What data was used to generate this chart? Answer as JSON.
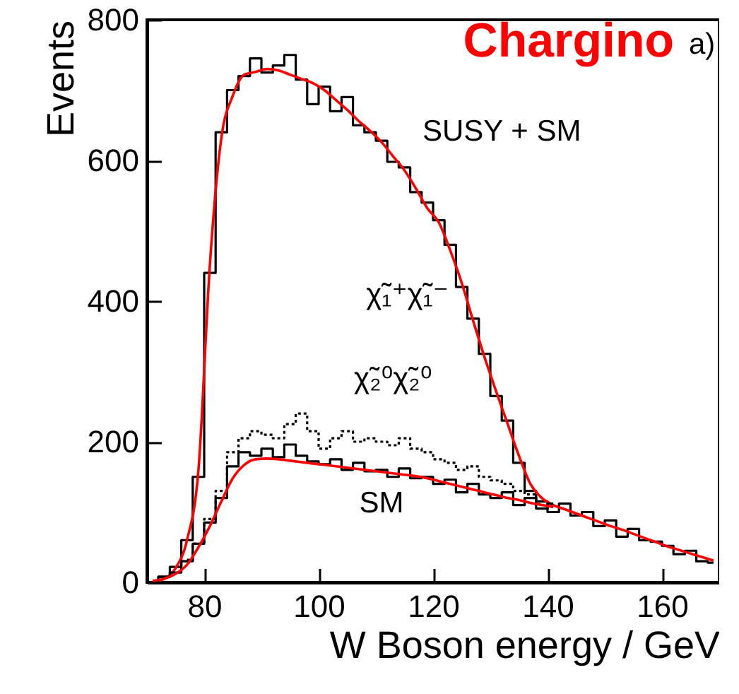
{
  "chart_data": {
    "type": "line",
    "title": "Chargino",
    "xlabel": "W Boson energy / GeV",
    "ylabel": "Events",
    "x": [
      71,
      73,
      75,
      77,
      79,
      81,
      83,
      85,
      87,
      89,
      91,
      93,
      95,
      97,
      99,
      101,
      103,
      105,
      107,
      109,
      111,
      113,
      115,
      117,
      119,
      121,
      123,
      125,
      127,
      129,
      131,
      133,
      135,
      137,
      139,
      141,
      143,
      145,
      147,
      149,
      151,
      153,
      155,
      157,
      159,
      161,
      163,
      165,
      167,
      169
    ],
    "series": [
      {
        "type": "step",
        "color": "#000000",
        "values": [
          2,
          8,
          22,
          60,
          150,
          440,
          640,
          700,
          720,
          745,
          725,
          735,
          750,
          715,
          680,
          705,
          670,
          690,
          650,
          640,
          628,
          598,
          590,
          555,
          540,
          515,
          480,
          420,
          375,
          325,
          265,
          230,
          170,
          130,
          115,
          100,
          112,
          95,
          100,
          80,
          88,
          65,
          76,
          60,
          58,
          52,
          40,
          45,
          30,
          28
        ]
      },
      {
        "type": "line",
        "color": "#ff0000",
        "values": [
          1,
          5,
          20,
          60,
          160,
          452,
          632,
          692,
          722,
          726,
          730,
          728,
          722,
          716,
          710,
          700,
          686,
          672,
          656,
          642,
          626,
          606,
          586,
          560,
          532,
          512,
          472,
          426,
          372,
          320,
          272,
          226,
          180,
          140,
          120,
          110,
          104,
          98,
          92,
          86,
          80,
          75,
          69,
          63,
          57,
          51,
          46,
          41,
          36,
          31
        ]
      },
      {
        "type": "step",
        "color": "#000000",
        "x": [
          71,
          73,
          75,
          77,
          79,
          81,
          83,
          85,
          87,
          89,
          91,
          93,
          95,
          97,
          99,
          101,
          103,
          105,
          107,
          109,
          111,
          113,
          115,
          117,
          119,
          121,
          123,
          125,
          127,
          129,
          131,
          133,
          135,
          137,
          139,
          141
        ],
        "values": [
          0,
          8,
          14,
          30,
          55,
          85,
          120,
          165,
          185,
          180,
          190,
          178,
          196,
          180,
          172,
          168,
          175,
          160,
          170,
          158,
          160,
          150,
          162,
          148,
          150,
          140,
          146,
          128,
          140,
          125,
          120,
          128,
          110,
          120,
          105,
          112
        ]
      },
      {
        "type": "step",
        "color": "#000000",
        "line_style": "dotted",
        "x": [
          77,
          79,
          81,
          83,
          85,
          87,
          89,
          91,
          93,
          95,
          97,
          99,
          101,
          103,
          105,
          107,
          109,
          111,
          113,
          115,
          117,
          119,
          121,
          123,
          125,
          127,
          129,
          131,
          133,
          135,
          137,
          139
        ],
        "values": [
          32,
          55,
          90,
          130,
          185,
          205,
          215,
          210,
          205,
          225,
          240,
          215,
          190,
          205,
          215,
          200,
          205,
          200,
          195,
          205,
          190,
          185,
          175,
          170,
          160,
          165,
          150,
          145,
          140,
          130,
          125,
          115
        ]
      },
      {
        "type": "line",
        "color": "#ff0000",
        "x": [
          71,
          73,
          75,
          77,
          79,
          81,
          83,
          85,
          87,
          89,
          91,
          93,
          95,
          97,
          99,
          101,
          103,
          105,
          107,
          109,
          111,
          113,
          115,
          117,
          119,
          121,
          123,
          125,
          127,
          129,
          131,
          133,
          135,
          137,
          139,
          141
        ],
        "values": [
          2,
          5,
          12,
          25,
          50,
          80,
          115,
          148,
          167,
          175,
          176,
          175,
          173,
          171,
          169,
          167,
          165,
          163,
          161,
          159,
          157,
          155,
          153,
          151,
          148,
          144,
          140,
          136,
          132,
          128,
          124,
          120,
          117,
          113,
          110,
          107
        ]
      }
    ],
    "annotations": [
      "SUSY + SM",
      "χ̃₁⁺χ̃₁⁻",
      "χ̃₂⁰χ̃₂⁰",
      "SM",
      "a)"
    ],
    "xlim": [
      70,
      170
    ],
    "ylim": [
      0,
      800
    ],
    "xticks": [
      80,
      100,
      120,
      140,
      160
    ],
    "yticks": [
      0,
      200,
      400,
      600,
      800
    ],
    "grid": false,
    "marker": "none"
  }
}
